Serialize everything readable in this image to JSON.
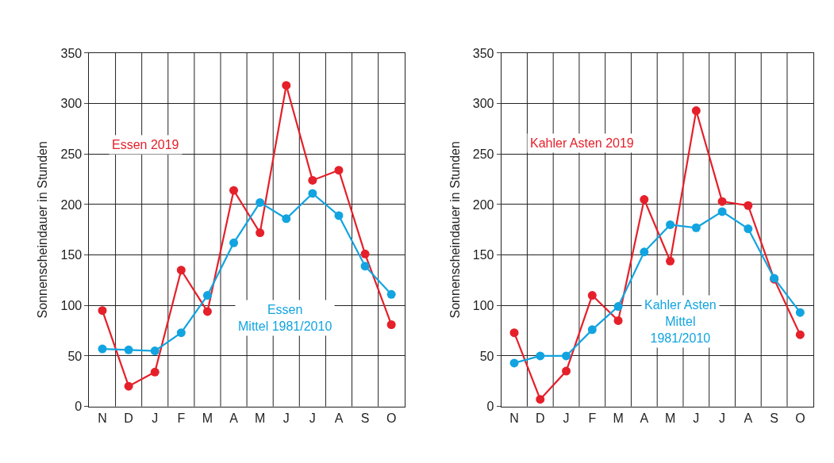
{
  "chart_data": [
    {
      "type": "line",
      "ylabel": "Sonnenscheindauer in Stunden",
      "categories": [
        "N",
        "D",
        "J",
        "F",
        "M",
        "A",
        "M",
        "J",
        "J",
        "A",
        "S",
        "O"
      ],
      "ylim": [
        0,
        350
      ],
      "yticks": [
        0,
        50,
        100,
        150,
        200,
        250,
        300,
        350
      ],
      "grid": true,
      "marker": "circle",
      "line_style": "solid",
      "series": [
        {
          "name": "Essen 2019",
          "color": "#e5202a",
          "values": [
            95,
            20,
            34,
            135,
            94,
            214,
            172,
            318,
            224,
            234,
            151,
            81
          ]
        },
        {
          "name": "Essen\nMittel 1981/2010",
          "color": "#12a4e0",
          "values": [
            57,
            56,
            55,
            73,
            110,
            162,
            202,
            186,
            211,
            189,
            139,
            111
          ]
        }
      ]
    },
    {
      "type": "line",
      "ylabel": "Sonnenscheindauer in Stunden",
      "categories": [
        "N",
        "D",
        "J",
        "F",
        "M",
        "A",
        "M",
        "J",
        "J",
        "A",
        "S",
        "O"
      ],
      "ylim": [
        0,
        350
      ],
      "yticks": [
        0,
        50,
        100,
        150,
        200,
        250,
        300,
        350
      ],
      "grid": true,
      "marker": "circle",
      "line_style": "solid",
      "series": [
        {
          "name": "Kahler Asten 2019",
          "color": "#e5202a",
          "values": [
            73,
            7,
            35,
            110,
            85,
            205,
            144,
            293,
            203,
            199,
            126,
            71
          ]
        },
        {
          "name": "Kahler Asten\nMittel\n1981/2010",
          "color": "#12a4e0",
          "values": [
            43,
            50,
            50,
            76,
            99,
            153,
            180,
            177,
            193,
            176,
            127,
            93
          ]
        }
      ]
    }
  ]
}
